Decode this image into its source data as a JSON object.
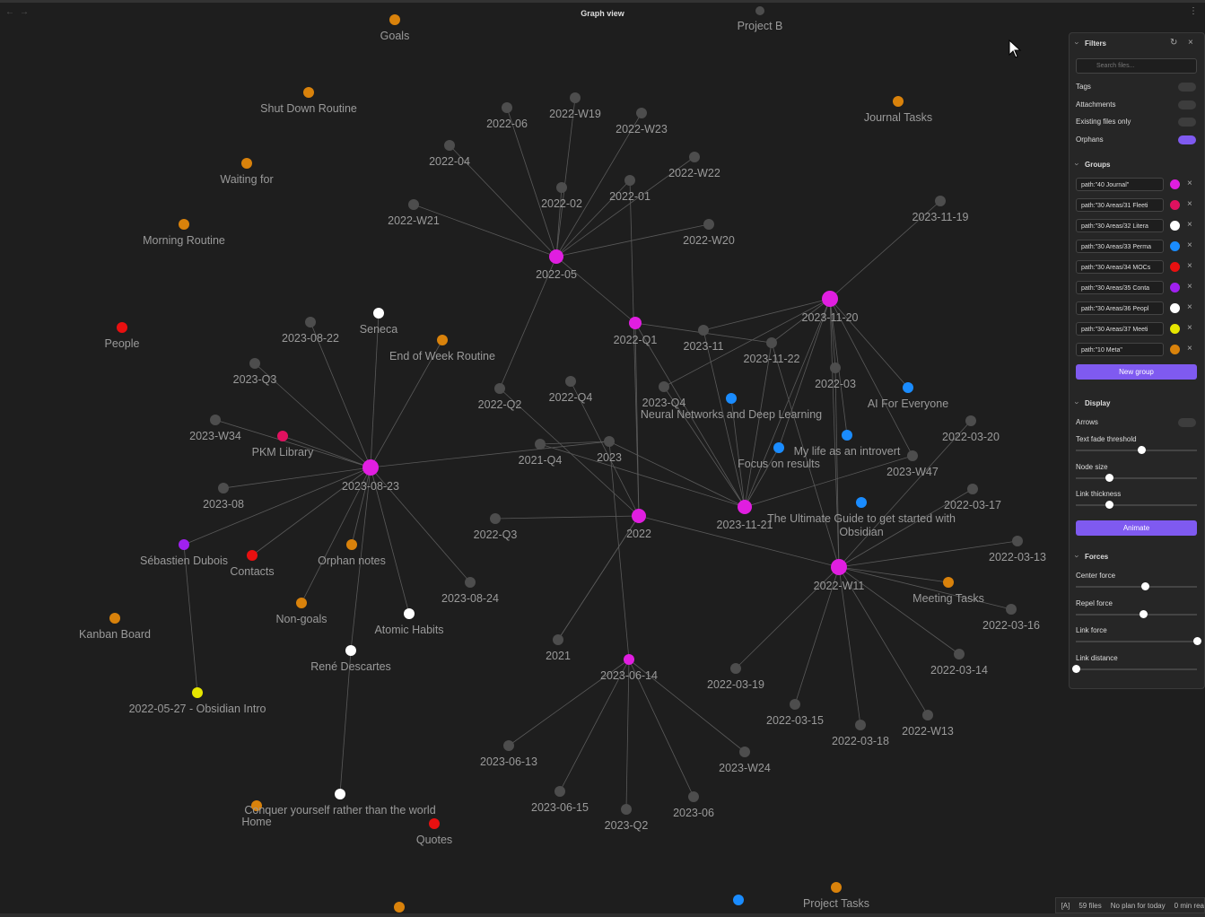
{
  "header": {
    "title": "Graph view"
  },
  "graph": {
    "nodes": [
      "Goals",
      "Project B",
      "Shut Down Routine",
      "Waiting for",
      "Morning Routine",
      "People",
      "Journal Tasks",
      "2022-06",
      "2022-W19",
      "2022-W23",
      "2022-04",
      "2022-W22",
      "2022-02",
      "2022-01",
      "2022-W21",
      "2022-W20",
      "2022-05",
      "2023-11-19",
      "2023-11-20",
      "Seneca",
      "2023-08-22",
      "End of Week Routine",
      "2022-Q1",
      "2023-11",
      "2023-11-22",
      "2023-Q3",
      "2022-03",
      "2022-Q4",
      "2022-Q2",
      "2023-Q4",
      "Neural Networks and Deep Learning",
      "AI For Everyone",
      "2023-W34",
      "2022-03-20",
      "PKM Library",
      "2021-Q4",
      "2023",
      "My life as an introvert",
      "Focus on results",
      "2023-W47",
      "2023-08-23",
      "2023-08",
      "2022-03-17",
      "2023-11-21",
      "2022",
      "The Ultimate Guide to get started with Obsidian",
      "2022-Q3",
      "Sébastien Dubois",
      "Orphan notes",
      "Contacts",
      "2022-W11",
      "2022-03-13",
      "Meeting Tasks",
      "2023-08-24",
      "Non-goals",
      "Atomic Habits",
      "2022-03-16",
      "Kanban Board",
      "René Descartes",
      "2021",
      "2023-06-14",
      "2022-03-14",
      "2022-03-19",
      "2022-05-27 - Obsidian Intro",
      "2022-03-15",
      "2022-03-18",
      "2022-W13",
      "2023-06-13",
      "2023-W24",
      "2023-06-15",
      "2023-06",
      "2023-Q2",
      "Conquer yourself rather than the world",
      "Home",
      "Quotes",
      "Project Tasks"
    ]
  },
  "panel": {
    "filters": {
      "title": "Filters",
      "search_placeholder": "Search files...",
      "toggles": [
        {
          "label": "Tags",
          "on": false
        },
        {
          "label": "Attachments",
          "on": false
        },
        {
          "label": "Existing files only",
          "on": false
        },
        {
          "label": "Orphans",
          "on": true
        }
      ]
    },
    "groups": {
      "title": "Groups",
      "items": [
        {
          "query": "path:\"40 Journal\"",
          "color": "#e01ee0"
        },
        {
          "query": "path:\"30 Areas/31 Fleeti",
          "color": "#e0115f"
        },
        {
          "query": "path:\"30 Areas/32 Litera",
          "color": "#ffffff"
        },
        {
          "query": "path:\"30 Areas/33 Perma",
          "color": "#1a8cff"
        },
        {
          "query": "path:\"30 Areas/34 MOCs",
          "color": "#e81010"
        },
        {
          "query": "path:\"30 Areas/35 Conta",
          "color": "#a020f0"
        },
        {
          "query": "path:\"30 Areas/36 Peopl",
          "color": "#ffffff"
        },
        {
          "query": "path:\"30 Areas/37 Meeti",
          "color": "#e6e600"
        },
        {
          "query": "path:\"10 Meta\"",
          "color": "#d9820b"
        }
      ],
      "button": "New group"
    },
    "display": {
      "title": "Display",
      "toggle": {
        "label": "Arrows",
        "on": false
      },
      "sliders": [
        "Text fade threshold",
        "Node size",
        "Link thickness"
      ],
      "button": "Animate"
    },
    "forces": {
      "title": "Forces",
      "sliders": [
        "Center force",
        "Repel force",
        "Link force",
        "Link distance"
      ]
    }
  },
  "status_bar": [
    "[A]",
    "59 files",
    "No plan for today",
    "0 min rea"
  ]
}
